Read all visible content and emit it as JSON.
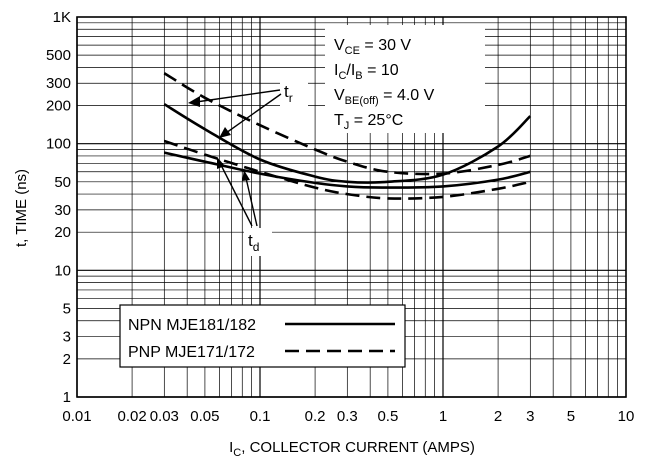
{
  "chart_data": {
    "type": "line",
    "title": "",
    "xlabel": "I",
    "xlabel_sub": "C",
    "xlabel_rest": ", COLLECTOR CURRENT (AMPS)",
    "ylabel": "t, TIME (ns)",
    "x_scale": "log",
    "y_scale": "log",
    "xlim": [
      0.01,
      10
    ],
    "ylim": [
      1,
      1000
    ],
    "grid": true,
    "x_ticks": [
      {
        "value": 0.01,
        "label": "0.01"
      },
      {
        "value": 0.02,
        "label": "0.02"
      },
      {
        "value": 0.03,
        "label": "0.03"
      },
      {
        "value": 0.05,
        "label": "0.05"
      },
      {
        "value": 0.1,
        "label": "0.1"
      },
      {
        "value": 0.2,
        "label": "0.2"
      },
      {
        "value": 0.3,
        "label": "0.3"
      },
      {
        "value": 0.5,
        "label": "0.5"
      },
      {
        "value": 1,
        "label": "1"
      },
      {
        "value": 2,
        "label": "2"
      },
      {
        "value": 3,
        "label": "3"
      },
      {
        "value": 5,
        "label": "5"
      },
      {
        "value": 10,
        "label": "10"
      }
    ],
    "y_ticks": [
      {
        "value": 1,
        "label": "1"
      },
      {
        "value": 2,
        "label": "2"
      },
      {
        "value": 3,
        "label": "3"
      },
      {
        "value": 5,
        "label": "5"
      },
      {
        "value": 10,
        "label": "10"
      },
      {
        "value": 20,
        "label": "20"
      },
      {
        "value": 30,
        "label": "30"
      },
      {
        "value": 50,
        "label": "50"
      },
      {
        "value": 100,
        "label": "100"
      },
      {
        "value": 200,
        "label": "200"
      },
      {
        "value": 300,
        "label": "300"
      },
      {
        "value": 500,
        "label": "500"
      },
      {
        "value": 1000,
        "label": "1K"
      }
    ],
    "series": [
      {
        "style": "solid",
        "group": "tr",
        "x": [
          0.03,
          0.05,
          0.1,
          0.2,
          0.3,
          0.5,
          1,
          2,
          3
        ],
        "y": [
          205,
          130,
          75,
          55,
          50,
          50,
          57,
          95,
          165
        ]
      },
      {
        "style": "solid",
        "group": "td",
        "x": [
          0.03,
          0.05,
          0.1,
          0.2,
          0.3,
          0.5,
          1,
          2,
          3
        ],
        "y": [
          85,
          72,
          58,
          49,
          46,
          45,
          46,
          52,
          60
        ]
      },
      {
        "style": "dashed",
        "group": "tr",
        "x": [
          0.03,
          0.05,
          0.1,
          0.2,
          0.3,
          0.5,
          1,
          2,
          3
        ],
        "y": [
          360,
          230,
          140,
          90,
          72,
          60,
          58,
          68,
          80
        ]
      },
      {
        "style": "dashed",
        "group": "td",
        "x": [
          0.03,
          0.05,
          0.1,
          0.2,
          0.3,
          0.5,
          1,
          2,
          3
        ],
        "y": [
          105,
          82,
          60,
          45,
          40,
          37,
          38,
          44,
          50
        ]
      }
    ],
    "conditions": [
      {
        "main": "V",
        "sub": "CE",
        "rest": " = 30 V"
      },
      {
        "main": "I",
        "sub": "C",
        "rest": "/I",
        "sub2": "B",
        "rest2": " = 10"
      },
      {
        "main": "V",
        "sub": "BE(off)",
        "rest": " = 4.0 V"
      },
      {
        "main": "T",
        "sub": "J",
        "rest": " = 25°C"
      }
    ],
    "annotations": [
      {
        "main": "t",
        "sub": "r"
      },
      {
        "main": "t",
        "sub": "d"
      }
    ],
    "legend": {
      "placement": "bottom-left",
      "entries": [
        {
          "label": "NPN MJE181/182",
          "style": "solid"
        },
        {
          "label": "PNP MJE171/172",
          "style": "dashed"
        }
      ]
    }
  }
}
